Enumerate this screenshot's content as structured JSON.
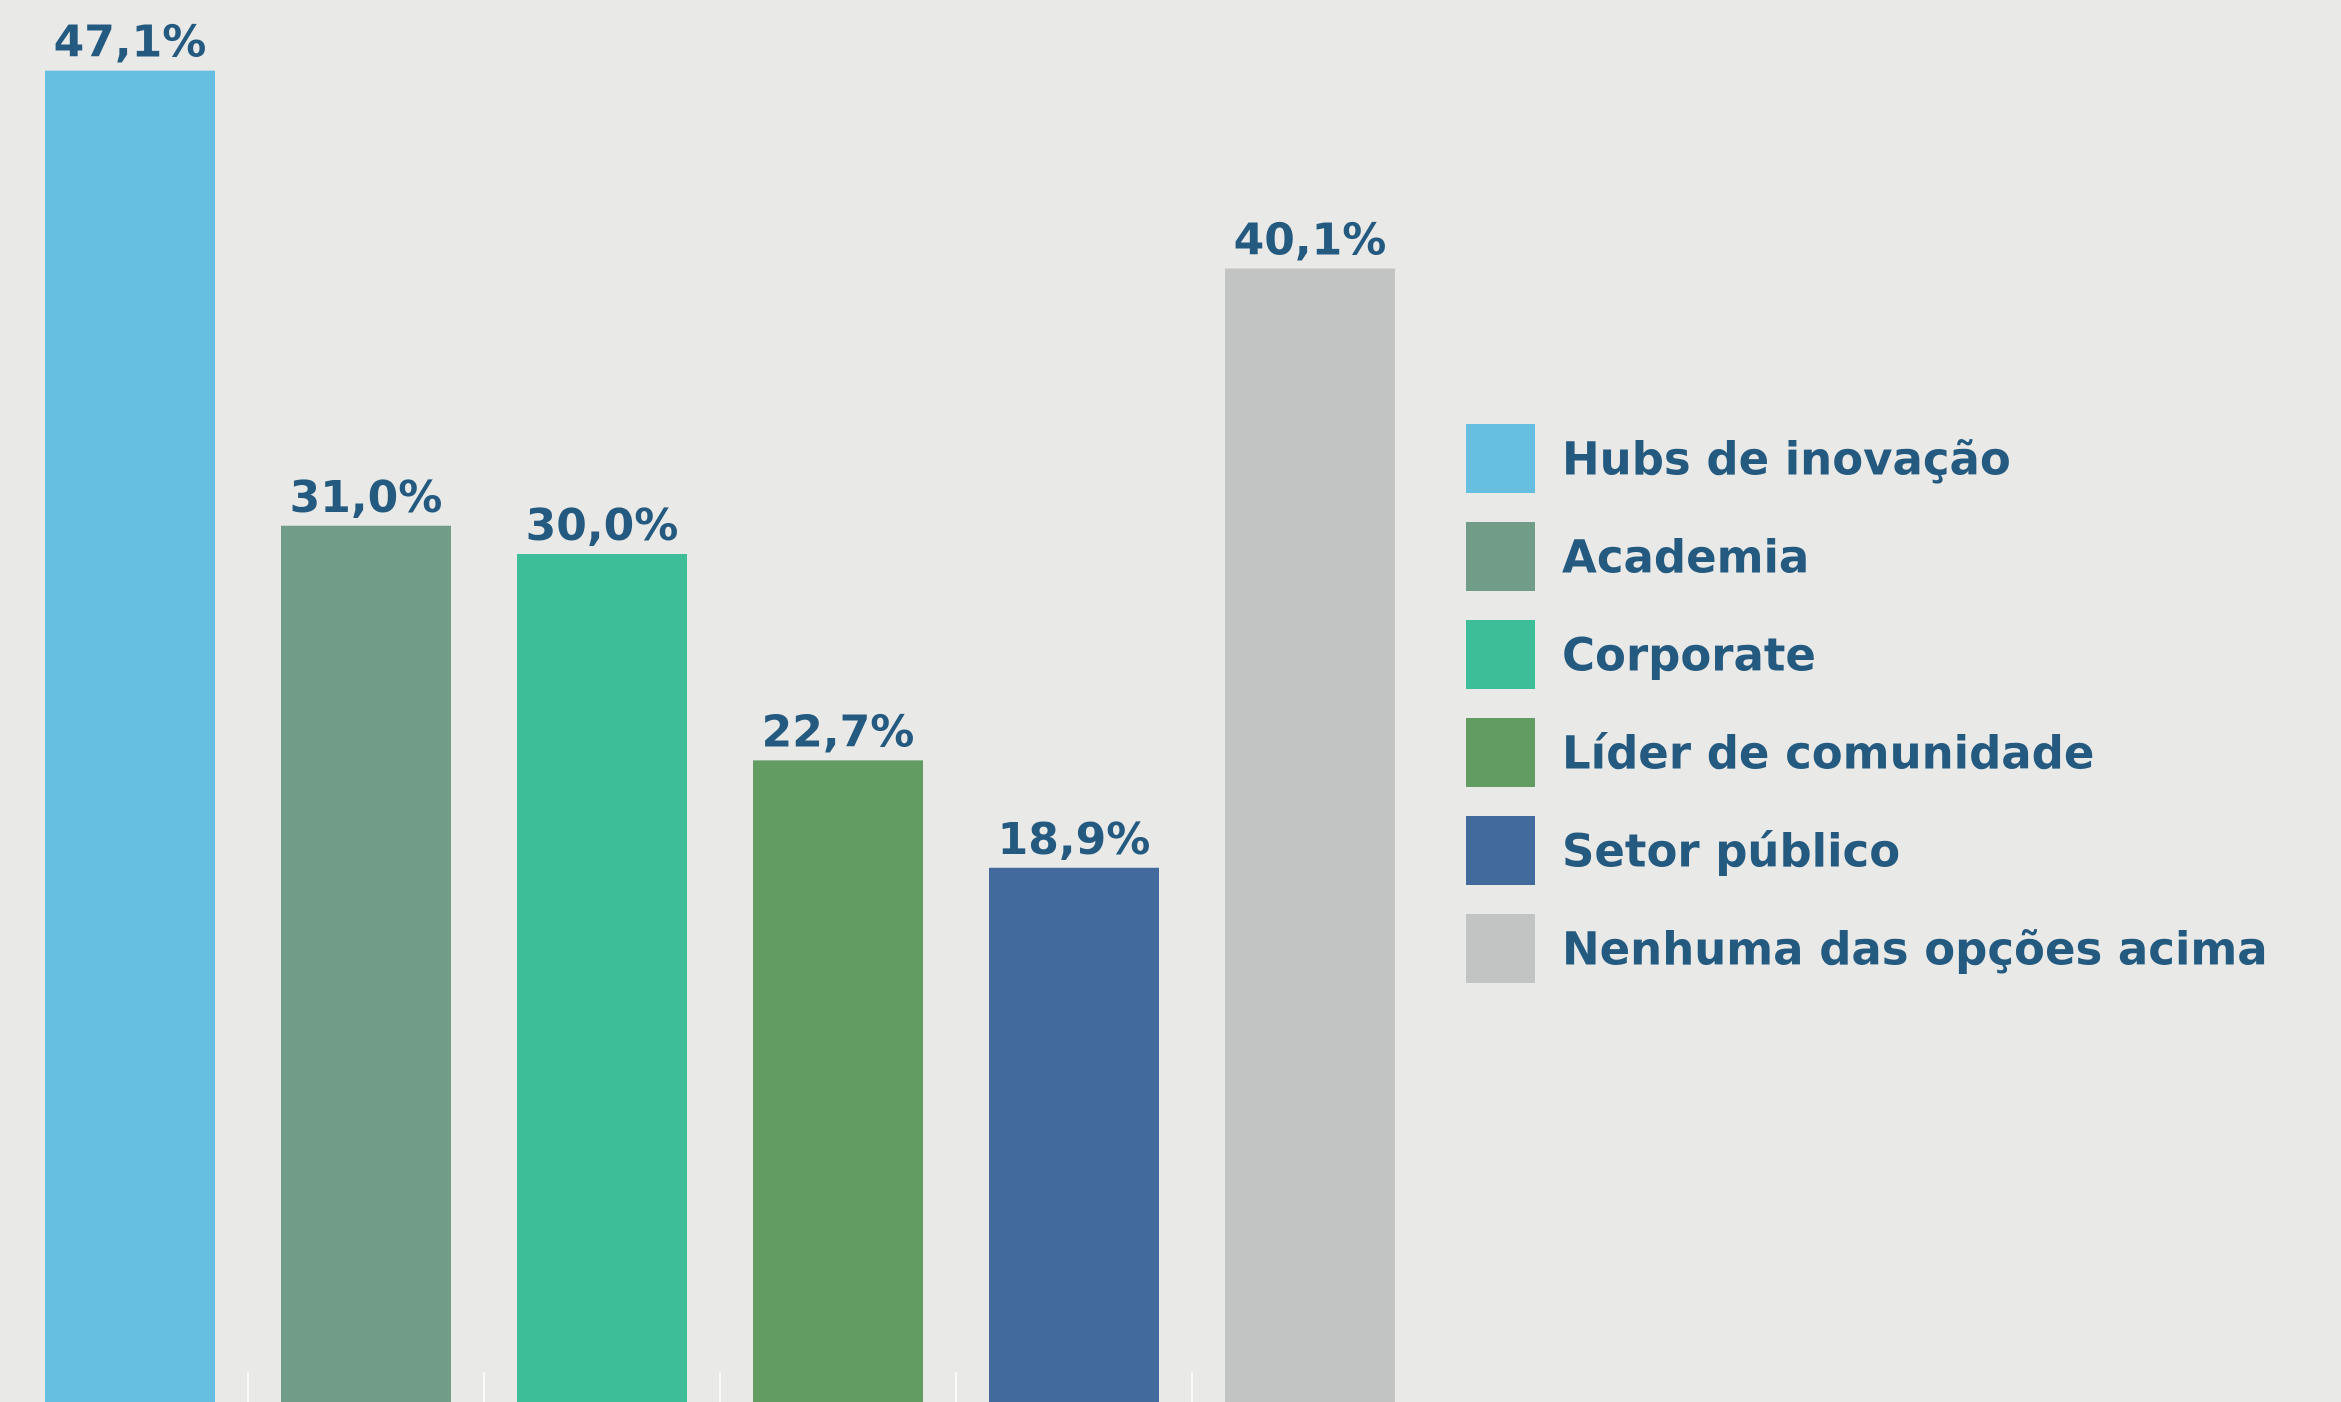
{
  "chart_data": {
    "type": "bar",
    "categories": [
      "Hubs de inovação",
      "Academia",
      "Corporate",
      "Líder de comunidade",
      "Setor público",
      "Nenhuma das opções acima"
    ],
    "values": [
      47.1,
      31.0,
      30.0,
      22.7,
      18.9,
      40.1
    ],
    "value_labels": [
      "47,1%",
      "31,0%",
      "30,0%",
      "22,7%",
      "18,9%",
      "40,1%"
    ],
    "colors": [
      "#66bfe0",
      "#719c88",
      "#3ebe98",
      "#629c63",
      "#426a9c",
      "#c2c4c3"
    ],
    "ylim": [
      0,
      49.6
    ],
    "legend": "right"
  }
}
